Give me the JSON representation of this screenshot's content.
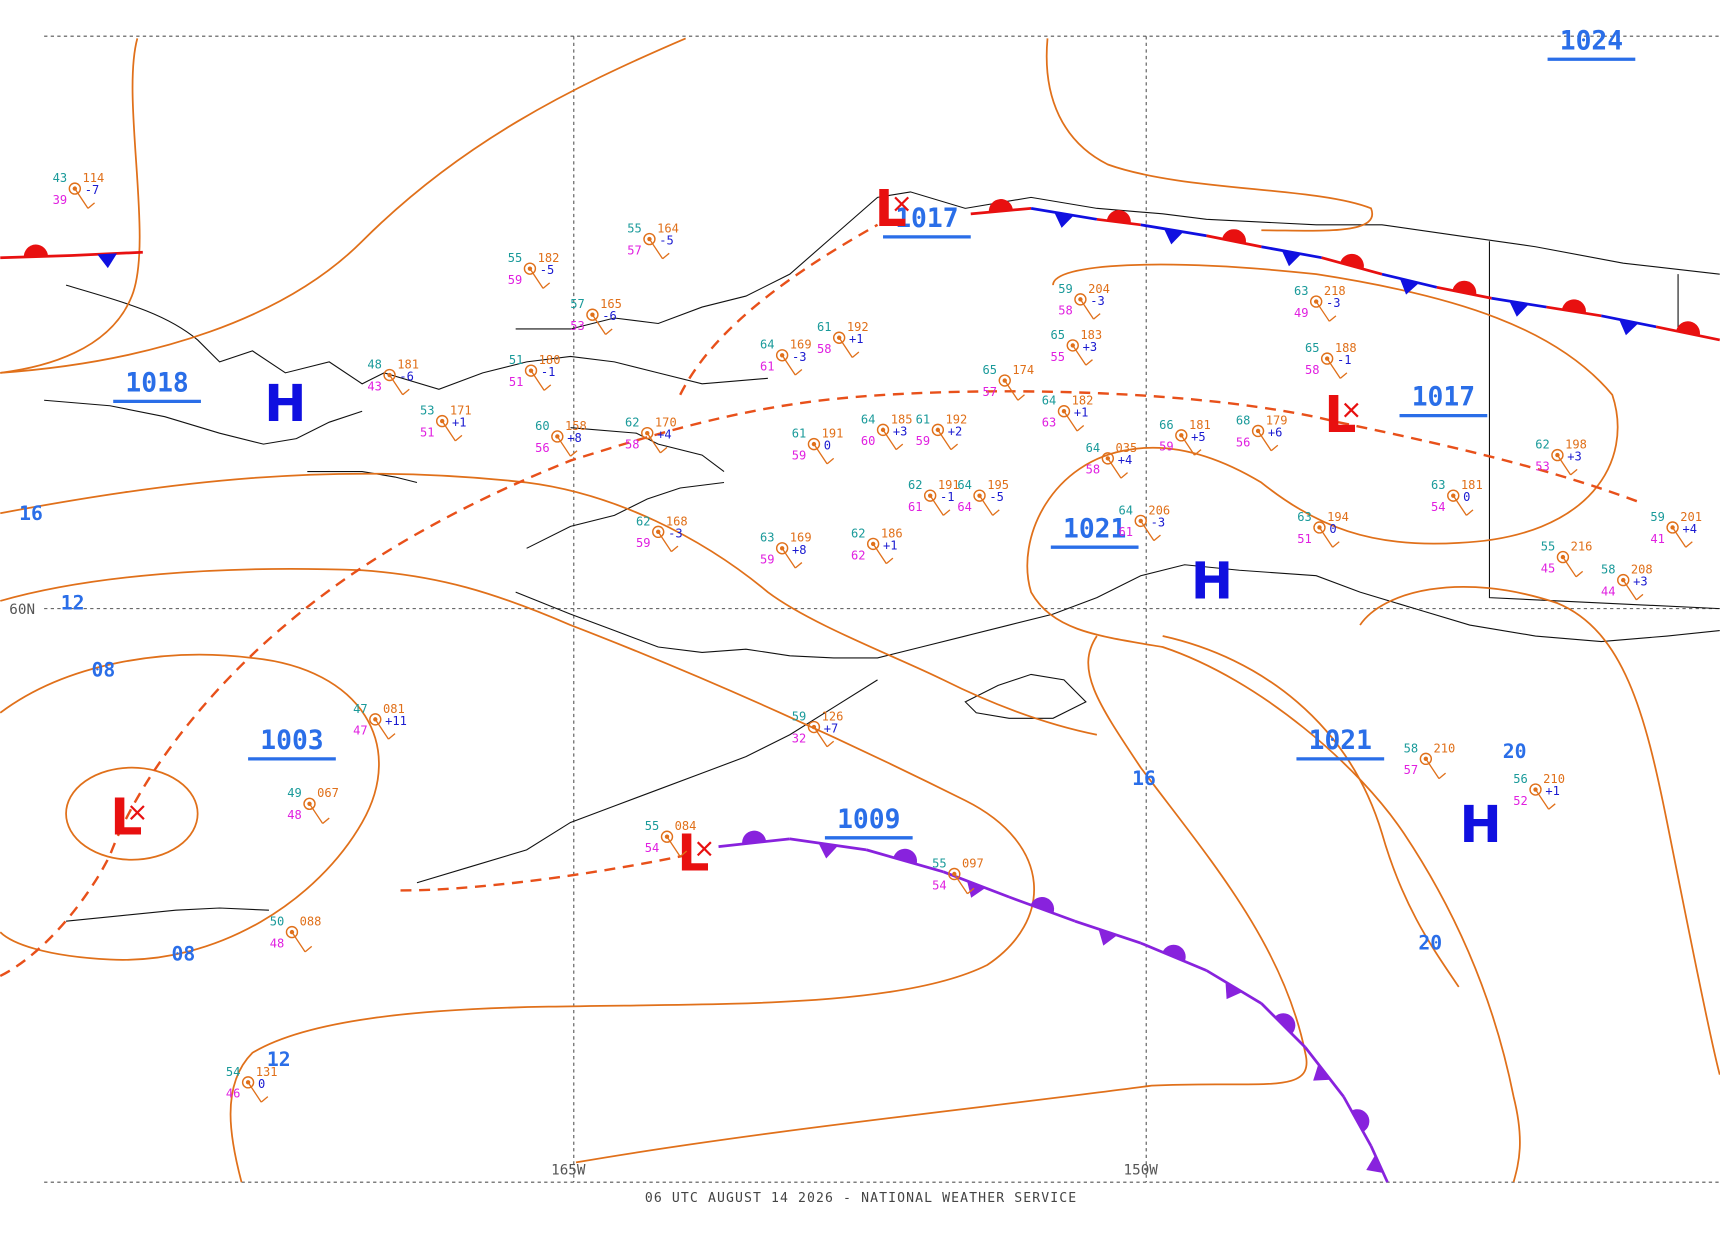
{
  "footer": "06 UTC AUGUST 14 2026 - NATIONAL WEATHER SERVICE",
  "grid_labels": [
    "60N",
    "165W",
    "150W"
  ],
  "pressure_labels": [
    "1024",
    "1017",
    "1018",
    "1017",
    "1021",
    "1003",
    "1009",
    "1021"
  ],
  "centers": [
    "H",
    "H",
    "H",
    "L",
    "L",
    "L",
    "L"
  ],
  "contour_labels": [
    "16",
    "12",
    "08",
    "08",
    "12",
    "16",
    "20",
    "20"
  ],
  "stations": [
    {
      "t": "43",
      "td": "39",
      "p": "114",
      "tend": "-7"
    },
    {
      "t": "55",
      "td": "59",
      "p": "182",
      "tend": "-5"
    },
    {
      "t": "55",
      "td": "57",
      "p": "164",
      "tend": "-5"
    },
    {
      "t": "57",
      "td": "53",
      "p": "165",
      "tend": "-6"
    },
    {
      "t": "48",
      "td": "43",
      "p": "181",
      "tend": "-6"
    },
    {
      "t": "53",
      "td": "51",
      "p": "171",
      "tend": "+1"
    },
    {
      "t": "51",
      "td": "51",
      "p": "180",
      "tend": "-1"
    },
    {
      "t": "60",
      "td": "56",
      "p": "158",
      "tend": "+8"
    },
    {
      "t": "62",
      "td": "58",
      "p": "170",
      "tend": "+4"
    },
    {
      "t": "64",
      "td": "61",
      "p": "169",
      "tend": "-3"
    },
    {
      "t": "61",
      "td": "58",
      "p": "192",
      "tend": "+1"
    },
    {
      "t": "61",
      "td": "59",
      "p": "191",
      "tend": "0"
    },
    {
      "t": "64",
      "td": "60",
      "p": "185",
      "tend": "+3"
    },
    {
      "t": "61",
      "td": "59",
      "p": "192",
      "tend": "+2"
    },
    {
      "t": "65",
      "td": "57",
      "p": "174"
    },
    {
      "t": "64",
      "td": "63",
      "p": "182",
      "tend": "+1"
    },
    {
      "t": "59",
      "td": "58",
      "p": "204",
      "tend": "-3"
    },
    {
      "t": "65",
      "td": "55",
      "p": "183",
      "tend": "+3"
    },
    {
      "t": "64",
      "td": "58",
      "p": "035",
      "tend": "+4"
    },
    {
      "t": "62",
      "td": "61",
      "p": "191",
      "tend": "-1"
    },
    {
      "t": "64",
      "td": "64",
      "p": "195",
      "tend": "-5"
    },
    {
      "t": "64",
      "td": "61",
      "p": "206",
      "tend": "-3"
    },
    {
      "t": "66",
      "td": "59",
      "p": "181",
      "tend": "+5"
    },
    {
      "t": "68",
      "td": "56",
      "p": "179",
      "tend": "+6"
    },
    {
      "t": "63",
      "td": "49",
      "p": "218",
      "tend": "-3"
    },
    {
      "t": "65",
      "td": "58",
      "p": "188",
      "tend": "-1"
    },
    {
      "t": "62",
      "td": "53",
      "p": "198",
      "tend": "+3"
    },
    {
      "t": "63",
      "td": "54",
      "p": "181",
      "tend": "0"
    },
    {
      "t": "63",
      "td": "51",
      "p": "194",
      "tend": "0"
    },
    {
      "t": "55",
      "td": "45",
      "p": "216"
    },
    {
      "t": "58",
      "td": "44",
      "p": "208",
      "tend": "+3"
    },
    {
      "t": "59",
      "td": "41",
      "p": "201",
      "tend": "+4"
    },
    {
      "t": "63",
      "td": "59",
      "p": "169",
      "tend": "+8"
    },
    {
      "t": "62",
      "td": "62",
      "p": "186",
      "tend": "+1"
    },
    {
      "t": "62",
      "td": "59",
      "p": "168",
      "tend": "-3"
    },
    {
      "t": "47",
      "td": "47",
      "p": "081",
      "tend": "+11"
    },
    {
      "t": "49",
      "td": "48",
      "p": "067"
    },
    {
      "t": "59",
      "td": "32",
      "p": "126",
      "tend": "+7"
    },
    {
      "t": "55",
      "td": "54",
      "p": "084"
    },
    {
      "t": "55",
      "td": "54",
      "p": "097"
    },
    {
      "t": "58",
      "td": "57",
      "p": "210"
    },
    {
      "t": "56",
      "td": "52",
      "p": "210",
      "tend": "+1"
    },
    {
      "t": "50",
      "td": "48",
      "p": "088"
    },
    {
      "t": "54",
      "td": "46",
      "p": "131",
      "tend": "0"
    }
  ]
}
